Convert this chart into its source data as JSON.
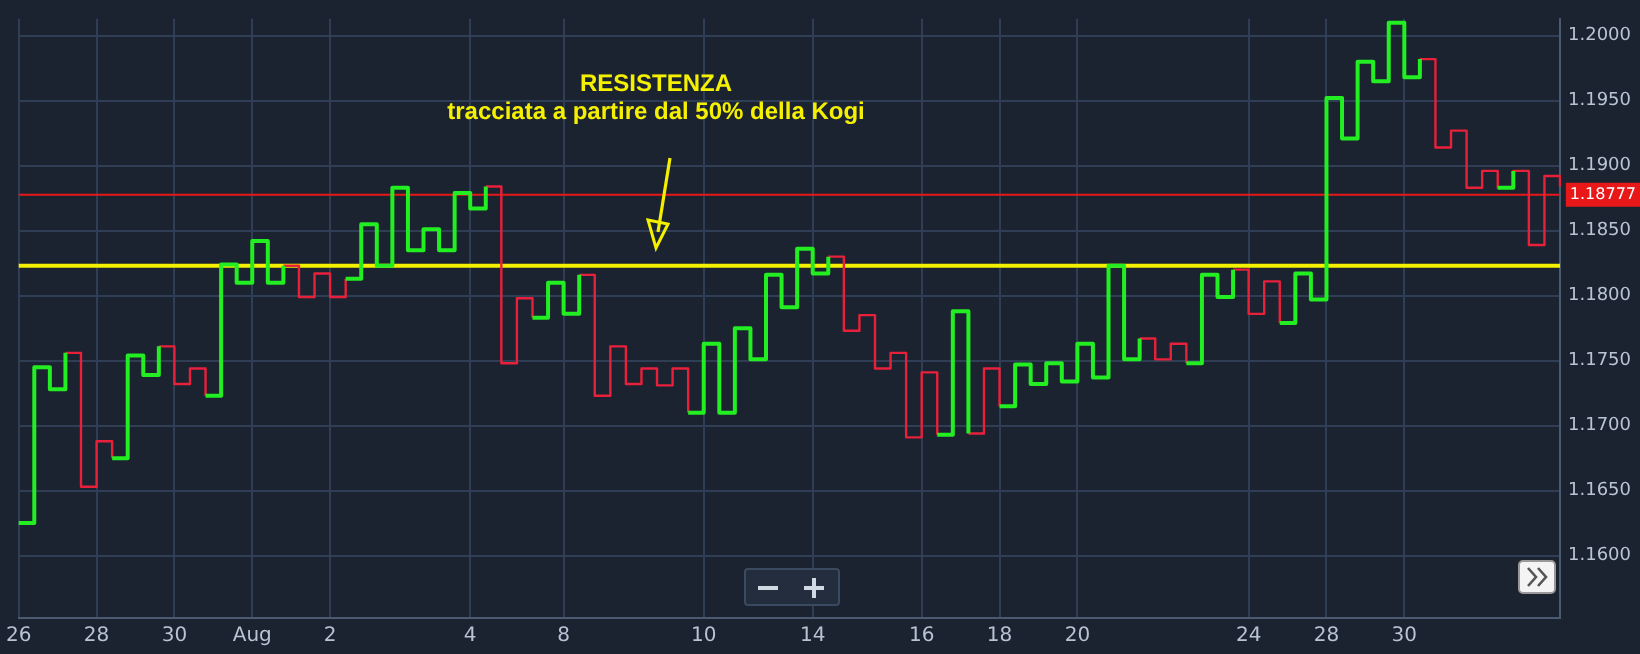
{
  "chart_data": {
    "type": "step",
    "categories": [
      "26",
      null,
      null,
      null,
      null,
      "28",
      null,
      null,
      null,
      null,
      "30",
      null,
      null,
      null,
      null,
      "Aug",
      null,
      null,
      null,
      null,
      "2",
      null,
      null,
      null,
      null,
      null,
      null,
      null,
      null,
      "4",
      null,
      null,
      null,
      null,
      null,
      "8",
      null,
      null,
      null,
      null,
      null,
      null,
      null,
      null,
      "10",
      null,
      null,
      null,
      null,
      null,
      null,
      "14",
      null,
      null,
      null,
      null,
      null,
      null,
      "16",
      null,
      null,
      null,
      null,
      "18",
      null,
      null,
      null,
      null,
      "20",
      null,
      null,
      null,
      null,
      null,
      null,
      null,
      null,
      null,
      null,
      "24",
      null,
      null,
      null,
      null,
      "28",
      null,
      null,
      null,
      null,
      "30",
      null,
      null,
      null,
      null,
      null,
      null,
      null,
      null,
      null,
      null
    ],
    "series": [
      {
        "color": "#e8203a",
        "values": [
          null,
          null,
          null,
          1.1756,
          1.1653,
          1.1688,
          1.1675,
          null,
          null,
          1.1761,
          1.1732,
          1.1744,
          1.1723,
          null,
          null,
          null,
          null,
          1.1823,
          1.1799,
          1.1817,
          1.1799,
          1.1813,
          null,
          null,
          null,
          null,
          null,
          null,
          null,
          null,
          1.1884,
          1.1748,
          1.1798,
          1.1783,
          null,
          null,
          1.1816,
          1.1723,
          1.1761,
          1.1732,
          1.1744,
          1.1731,
          1.1744,
          1.171,
          null,
          null,
          null,
          null,
          null,
          null,
          null,
          null,
          1.183,
          1.1773,
          1.1785,
          1.1744,
          1.1756,
          1.1691,
          1.1741,
          1.1693,
          null,
          1.1694,
          1.1744,
          1.1715,
          null,
          null,
          null,
          null,
          null,
          null,
          null,
          null,
          1.1767,
          1.1751,
          1.1763,
          1.1748,
          null,
          null,
          1.182,
          1.1786,
          1.1811,
          1.1779,
          null,
          null,
          null,
          null,
          null,
          null,
          null,
          null,
          1.1982,
          1.1914,
          1.1927,
          1.1883,
          1.1896,
          1.1883,
          1.1896,
          1.1839,
          1.1892,
          1.1884
        ]
      },
      {
        "color": "#22ee22",
        "values": [
          1.1625,
          1.1745,
          1.1728,
          1.1756,
          null,
          null,
          1.1675,
          1.1754,
          1.1739,
          1.1761,
          null,
          null,
          1.1723,
          1.1824,
          1.181,
          1.1842,
          1.181,
          1.1823,
          null,
          null,
          null,
          1.1813,
          1.1855,
          1.1823,
          1.1883,
          1.1835,
          1.1851,
          1.1835,
          1.1879,
          1.1867,
          1.1884,
          null,
          null,
          1.1783,
          1.181,
          1.1786,
          1.1816,
          null,
          null,
          null,
          null,
          null,
          null,
          1.171,
          1.1763,
          1.171,
          1.1775,
          1.1751,
          1.1816,
          1.1791,
          1.1836,
          1.1817,
          1.183,
          null,
          null,
          null,
          null,
          null,
          null,
          1.1693,
          1.1788,
          1.1694,
          null,
          1.1715,
          1.1747,
          1.1732,
          1.1748,
          1.1734,
          1.1763,
          1.1737,
          1.1823,
          1.1751,
          1.1767,
          null,
          null,
          1.1748,
          1.1816,
          1.1799,
          1.182,
          null,
          null,
          1.1779,
          1.1817,
          1.1797,
          1.1952,
          1.1921,
          1.198,
          1.1965,
          1.201,
          1.1968,
          1.1982,
          null,
          null,
          null,
          null,
          1.1883,
          1.1896,
          null,
          null,
          null
        ]
      }
    ],
    "ylim": [
      1.1552,
      1.2013
    ],
    "yticks": [
      {
        "value": 1.16,
        "label": "1.1600"
      },
      {
        "value": 1.165,
        "label": "1.1650"
      },
      {
        "value": 1.17,
        "label": "1.1700"
      },
      {
        "value": 1.175,
        "label": "1.1750"
      },
      {
        "value": 1.18,
        "label": "1.1800"
      },
      {
        "value": 1.185,
        "label": "1.1850"
      },
      {
        "value": 1.19,
        "label": "1.1900"
      },
      {
        "value": 1.195,
        "label": "1.1950"
      },
      {
        "value": 1.2,
        "label": "1.2000"
      }
    ],
    "ref_lines": [
      {
        "axis": "y",
        "value": 1.1823,
        "color": "#f5f000"
      },
      {
        "axis": "y",
        "value": 1.18777,
        "label": "1.18777",
        "color": "#e81818"
      }
    ],
    "annotations": [
      "RESISTENZA",
      "tracciata a partire dal 50% della Kogi"
    ],
    "grid": true,
    "legend": false,
    "marker": "none",
    "line_style": "solid"
  }
}
